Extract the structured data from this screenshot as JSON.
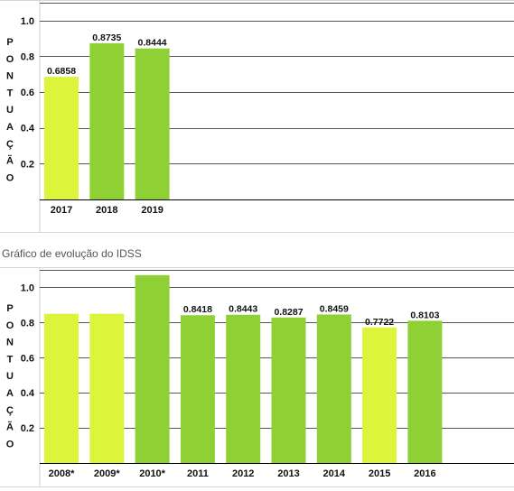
{
  "section_title": "Gráfico de evolução do IDSS",
  "colors": {
    "bar_low": "#dcf53a",
    "bar_high": "#8fd135",
    "grid": "#555555",
    "axis": "#000000",
    "text": "#111111"
  },
  "chart_data": [
    {
      "type": "bar",
      "ylabel": "PONTUAÇÃO",
      "ylim": [
        0,
        1.1
      ],
      "yticks": [
        0.2,
        0.4,
        0.6,
        0.8,
        1.0
      ],
      "ytick_labels": [
        "0.2",
        "0.4",
        "0.6",
        "0.8",
        "1.0"
      ],
      "grid": true,
      "categories": [
        "2017",
        "2018",
        "2019"
      ],
      "values": [
        0.6858,
        0.8735,
        0.8444
      ],
      "value_labels": [
        "0.6858",
        "0.8735",
        "0.8444"
      ],
      "bar_colors": [
        "bar_low",
        "bar_high",
        "bar_high"
      ]
    },
    {
      "type": "bar",
      "ylabel": "PONTUAÇÃO",
      "ylim": [
        0,
        1.1
      ],
      "yticks": [
        0.2,
        0.4,
        0.6,
        0.8,
        1.0
      ],
      "ytick_labels": [
        "0.2",
        "0.4",
        "0.6",
        "0.8",
        "1.0"
      ],
      "grid": true,
      "categories": [
        "2008*",
        "2009*",
        "2010*",
        "2011",
        "2012",
        "2013",
        "2014",
        "2015",
        "2016"
      ],
      "values": [
        0.85,
        0.85,
        1.07,
        0.8418,
        0.8443,
        0.8287,
        0.8459,
        0.7722,
        0.8103
      ],
      "value_labels": [
        "",
        "",
        "",
        "0.8418",
        "0.8443",
        "0.8287",
        "0.8459",
        "0.7722",
        "0.8103"
      ],
      "bar_colors": [
        "bar_low",
        "bar_low",
        "bar_high",
        "bar_high",
        "bar_high",
        "bar_high",
        "bar_high",
        "bar_low",
        "bar_high"
      ]
    }
  ]
}
